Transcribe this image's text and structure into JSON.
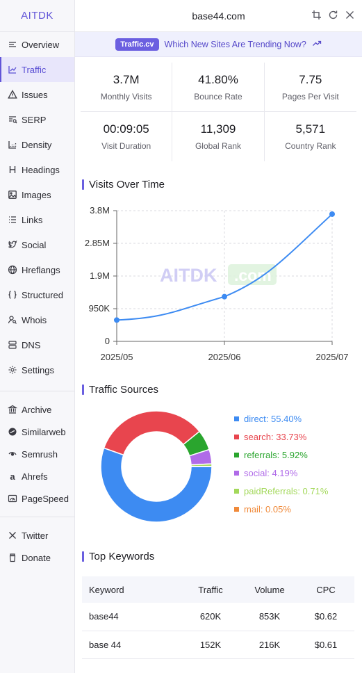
{
  "brand": "AITDK",
  "sidebar": {
    "items": [
      {
        "label": "Overview",
        "icon": "overview-icon"
      },
      {
        "label": "Traffic",
        "icon": "traffic-icon"
      },
      {
        "label": "Issues",
        "icon": "warning-icon"
      },
      {
        "label": "SERP",
        "icon": "serp-icon"
      },
      {
        "label": "Density",
        "icon": "density-icon"
      },
      {
        "label": "Headings",
        "icon": "heading-icon"
      },
      {
        "label": "Images",
        "icon": "image-icon"
      },
      {
        "label": "Links",
        "icon": "links-icon"
      },
      {
        "label": "Social",
        "icon": "twitter-bird-icon"
      },
      {
        "label": "Hreflangs",
        "icon": "globe-icon"
      },
      {
        "label": "Structured",
        "icon": "braces-icon"
      },
      {
        "label": "Whois",
        "icon": "user-search-icon"
      },
      {
        "label": "DNS",
        "icon": "server-icon"
      },
      {
        "label": "Settings",
        "icon": "gear-icon"
      }
    ],
    "tools": [
      {
        "label": "Archive",
        "icon": "archive-icon"
      },
      {
        "label": "Similarweb",
        "icon": "similarweb-icon"
      },
      {
        "label": "Semrush",
        "icon": "semrush-icon"
      },
      {
        "label": "Ahrefs",
        "icon": "ahrefs-icon"
      },
      {
        "label": "PageSpeed",
        "icon": "pagespeed-icon"
      }
    ],
    "footer": [
      {
        "label": "Twitter",
        "icon": "x-icon"
      },
      {
        "label": "Donate",
        "icon": "donate-icon"
      }
    ]
  },
  "header": {
    "domain": "base44.com"
  },
  "banner": {
    "pill": "Traffic.cv",
    "text": "Which New Sites Are Trending Now?"
  },
  "stats": [
    {
      "value": "3.7M",
      "label": "Monthly Visits"
    },
    {
      "value": "41.80%",
      "label": "Bounce Rate"
    },
    {
      "value": "7.75",
      "label": "Pages Per Visit"
    },
    {
      "value": "00:09:05",
      "label": "Visit Duration"
    },
    {
      "value": "11,309",
      "label": "Global Rank"
    },
    {
      "value": "5,571",
      "label": "Country Rank"
    }
  ],
  "visits_title": "Visits Over Time",
  "sources_title": "Traffic Sources",
  "keywords_title": "Top Keywords",
  "watermark": {
    "text": "AITDK",
    "badge": ".com"
  },
  "chart_data": [
    {
      "type": "line",
      "x": [
        "2025/05",
        "2025/06",
        "2025/07"
      ],
      "series": [
        {
          "values": [
            620000,
            1300000,
            3700000
          ]
        }
      ],
      "y_ticks": [
        "0",
        "950K",
        "1.9M",
        "2.85M",
        "3.8M"
      ],
      "ylim": [
        0,
        3800000
      ],
      "grid": true,
      "color": "#3d8bf2"
    },
    {
      "type": "pie",
      "donut": true,
      "labels": [
        "direct",
        "search",
        "referrals",
        "social",
        "paidReferrals",
        "mail"
      ],
      "values": [
        55.4,
        33.73,
        5.92,
        4.19,
        0.71,
        0.05
      ],
      "legend": [
        "direct: 55.40%",
        "search: 33.73%",
        "referrals: 5.92%",
        "social: 4.19%",
        "paidReferrals: 0.71%",
        "mail: 0.05%"
      ],
      "colors": [
        "#3d8bf2",
        "#e8454e",
        "#2aa52e",
        "#b06be8",
        "#a3d85a",
        "#f08a3a"
      ],
      "legend_placement": "right"
    }
  ],
  "keywords": {
    "headers": [
      "Keyword",
      "Traffic",
      "Volume",
      "CPC"
    ],
    "rows": [
      [
        "base44",
        "620K",
        "853K",
        "$0.62"
      ],
      [
        "base 44",
        "152K",
        "216K",
        "$0.61"
      ]
    ]
  }
}
